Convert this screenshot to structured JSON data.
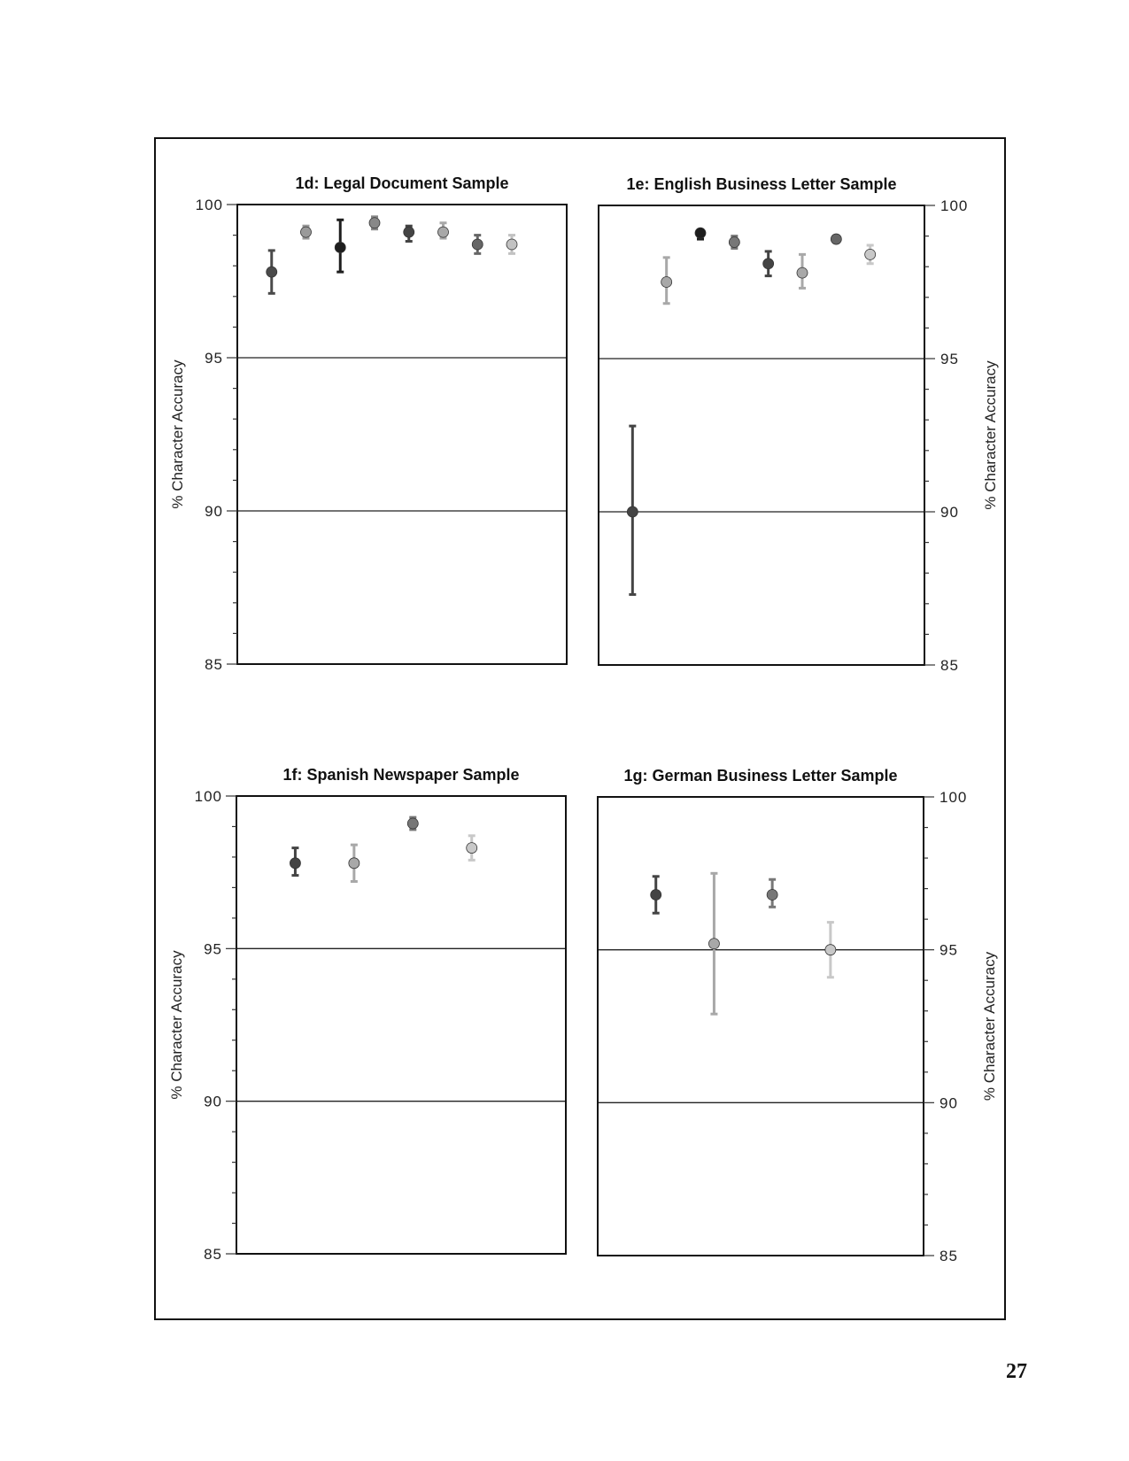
{
  "page_number": "27",
  "chart_data": [
    {
      "type": "scatter",
      "title": "1d:  Legal Document Sample",
      "ylabel": "% Character Accuracy",
      "y_axis_side": "left",
      "ylim": [
        85,
        100
      ],
      "yticks": [
        "85",
        "90",
        "95",
        "100"
      ],
      "gridlines": [
        90,
        95
      ],
      "points": [
        {
          "y": 97.8,
          "low": 97.1,
          "high": 98.5,
          "color": "#4a4a4a"
        },
        {
          "y": 99.1,
          "low": 98.9,
          "high": 99.3,
          "color": "#9a9a9a"
        },
        {
          "y": 98.6,
          "low": 97.8,
          "high": 99.5,
          "color": "#1e1e1e"
        },
        {
          "y": 99.4,
          "low": 99.2,
          "high": 99.6,
          "color": "#888888"
        },
        {
          "y": 99.1,
          "low": 98.8,
          "high": 99.3,
          "color": "#444444"
        },
        {
          "y": 99.1,
          "low": 98.9,
          "high": 99.4,
          "color": "#a8a8a8"
        },
        {
          "y": 98.7,
          "low": 98.4,
          "high": 99.0,
          "color": "#666666"
        },
        {
          "y": 98.7,
          "low": 98.4,
          "high": 99.0,
          "color": "#c2c2c2"
        }
      ]
    },
    {
      "type": "scatter",
      "title": "1e:  English Business Letter Sample",
      "ylabel": "% Character Accuracy",
      "y_axis_side": "right",
      "ylim": [
        85,
        100
      ],
      "yticks": [
        "85",
        "90",
        "95",
        "100"
      ],
      "gridlines": [
        90,
        95
      ],
      "points": [
        {
          "y": 90.0,
          "low": 87.3,
          "high": 92.8,
          "color": "#444444"
        },
        {
          "y": 97.5,
          "low": 96.8,
          "high": 98.3,
          "color": "#a8a8a8"
        },
        {
          "y": 99.1,
          "low": 98.9,
          "high": 99.2,
          "color": "#1e1e1e"
        },
        {
          "y": 98.8,
          "low": 98.6,
          "high": 99.0,
          "color": "#777777"
        },
        {
          "y": 98.1,
          "low": 97.7,
          "high": 98.5,
          "color": "#444444"
        },
        {
          "y": 97.8,
          "low": 97.3,
          "high": 98.4,
          "color": "#a8a8a8"
        },
        {
          "y": 98.9,
          "low": 98.8,
          "high": 99.0,
          "color": "#666666"
        },
        {
          "y": 98.4,
          "low": 98.1,
          "high": 98.7,
          "color": "#c8c8c8"
        }
      ]
    },
    {
      "type": "scatter",
      "title": "1f:  Spanish Newspaper Sample",
      "ylabel": "% Character Accuracy",
      "y_axis_side": "left",
      "ylim": [
        85,
        100
      ],
      "yticks": [
        "85",
        "90",
        "95",
        "100"
      ],
      "gridlines": [
        90,
        95
      ],
      "points": [
        {
          "y": 97.8,
          "low": 97.4,
          "high": 98.3,
          "color": "#444444"
        },
        {
          "y": 97.8,
          "low": 97.2,
          "high": 98.4,
          "color": "#a8a8a8"
        },
        {
          "y": 99.1,
          "low": 98.9,
          "high": 99.3,
          "color": "#777777"
        },
        {
          "y": 98.3,
          "low": 97.9,
          "high": 98.7,
          "color": "#c8c8c8"
        }
      ]
    },
    {
      "type": "scatter",
      "title": "1g:  German Business Letter Sample",
      "ylabel": "% Character Accuracy",
      "y_axis_side": "right",
      "ylim": [
        85,
        100
      ],
      "yticks": [
        "85",
        "90",
        "95",
        "100"
      ],
      "gridlines": [
        90,
        95
      ],
      "points": [
        {
          "y": 96.8,
          "low": 96.2,
          "high": 97.4,
          "color": "#444444"
        },
        {
          "y": 95.2,
          "low": 92.9,
          "high": 97.5,
          "color": "#a8a8a8"
        },
        {
          "y": 96.8,
          "low": 96.4,
          "high": 97.3,
          "color": "#777777"
        },
        {
          "y": 95.0,
          "low": 94.1,
          "high": 95.9,
          "color": "#c8c8c8"
        }
      ]
    }
  ]
}
